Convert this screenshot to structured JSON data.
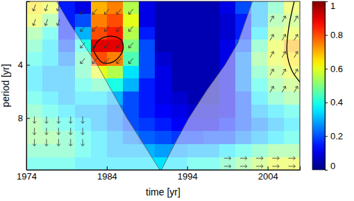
{
  "chart_data": {
    "type": "heatmap",
    "xlabel": "time [yr]",
    "ylabel": "period [yr]",
    "log": "y",
    "xlim": [
      1974,
      2008
    ],
    "ylim": [
      1.75,
      15.7
    ],
    "xticks": [
      1974,
      1984,
      1994,
      2004
    ],
    "yticks": [
      4,
      8
    ],
    "x": [
      1975,
      1977,
      1979,
      1981,
      1983,
      1985,
      1987,
      1989,
      1991,
      1993,
      1995,
      1997,
      1999,
      2001,
      2003,
      2005,
      2007
    ],
    "y": [
      1.9,
      2.25,
      2.65,
      3.1,
      3.7,
      4.4,
      5.2,
      6.2,
      7.3,
      8.7,
      10.3,
      12.2,
      14.5
    ],
    "z": [
      [
        0.65,
        0.6,
        0.15,
        0.1,
        0.7,
        0.75,
        0.55,
        0.1,
        0.05,
        0.05,
        0.05,
        0.05,
        0.1,
        0.2,
        0.3,
        0.45,
        0.6
      ],
      [
        0.6,
        0.5,
        0.15,
        0.2,
        0.75,
        0.8,
        0.6,
        0.1,
        0.05,
        0.05,
        0.05,
        0.05,
        0.08,
        0.15,
        0.3,
        0.5,
        0.55
      ],
      [
        0.5,
        0.4,
        0.15,
        0.3,
        0.8,
        0.85,
        0.55,
        0.15,
        0.05,
        0.05,
        0.05,
        0.05,
        0.08,
        0.15,
        0.35,
        0.55,
        0.6
      ],
      [
        0.45,
        0.35,
        0.2,
        0.4,
        0.9,
        0.9,
        0.5,
        0.2,
        0.05,
        0.05,
        0.05,
        0.05,
        0.1,
        0.2,
        0.45,
        0.6,
        0.7
      ],
      [
        0.4,
        0.35,
        0.25,
        0.45,
        0.8,
        0.75,
        0.45,
        0.2,
        0.08,
        0.05,
        0.05,
        0.05,
        0.1,
        0.25,
        0.5,
        0.6,
        0.65
      ],
      [
        0.35,
        0.3,
        0.3,
        0.45,
        0.6,
        0.55,
        0.35,
        0.2,
        0.1,
        0.05,
        0.05,
        0.05,
        0.1,
        0.25,
        0.45,
        0.55,
        0.6
      ],
      [
        0.35,
        0.3,
        0.3,
        0.4,
        0.45,
        0.4,
        0.3,
        0.15,
        0.1,
        0.05,
        0.05,
        0.05,
        0.1,
        0.25,
        0.4,
        0.5,
        0.55
      ],
      [
        0.4,
        0.35,
        0.3,
        0.35,
        0.35,
        0.3,
        0.2,
        0.15,
        0.1,
        0.08,
        0.05,
        0.05,
        0.1,
        0.2,
        0.35,
        0.45,
        0.5
      ],
      [
        0.45,
        0.4,
        0.35,
        0.3,
        0.3,
        0.25,
        0.2,
        0.15,
        0.12,
        0.1,
        0.08,
        0.08,
        0.1,
        0.2,
        0.3,
        0.35,
        0.4
      ],
      [
        0.5,
        0.45,
        0.4,
        0.35,
        0.3,
        0.25,
        0.2,
        0.18,
        0.15,
        0.12,
        0.1,
        0.1,
        0.15,
        0.2,
        0.25,
        0.3,
        0.35
      ],
      [
        0.5,
        0.5,
        0.45,
        0.4,
        0.35,
        0.3,
        0.25,
        0.22,
        0.2,
        0.18,
        0.18,
        0.2,
        0.2,
        0.25,
        0.3,
        0.35,
        0.4
      ],
      [
        0.45,
        0.45,
        0.45,
        0.4,
        0.35,
        0.3,
        0.3,
        0.3,
        0.28,
        0.28,
        0.3,
        0.3,
        0.35,
        0.4,
        0.45,
        0.5,
        0.5
      ],
      [
        0.4,
        0.4,
        0.4,
        0.35,
        0.35,
        0.35,
        0.35,
        0.35,
        0.35,
        0.35,
        0.4,
        0.4,
        0.45,
        0.5,
        0.55,
        0.6,
        0.6
      ]
    ],
    "colorbar": {
      "lim": [
        0,
        1
      ],
      "ticks": [
        0,
        0.2,
        0.4,
        0.6,
        0.8,
        1
      ]
    },
    "coi": {
      "x": [
        1977.6,
        1979.3,
        1981.2,
        1982.8,
        1984.6,
        1986.5,
        1988.6,
        1990.7,
        1992.4,
        1994.2,
        1996.4,
        1998.7,
        2000.3,
        2002.2
      ],
      "y": [
        1.7,
        2.3,
        3.1,
        4,
        5.6,
        8,
        11.3,
        16,
        11.3,
        8,
        5.6,
        4,
        3,
        1.7
      ]
    },
    "contours": [
      {
        "x": [
          1982.3,
          1983,
          1984.5,
          1985.8,
          1986,
          1985,
          1983.5,
          1982.3
        ],
        "y": [
          3.3,
          2.9,
          2.75,
          2.9,
          3.3,
          3.8,
          3.9,
          3.3
        ]
      },
      {
        "x": [
          2007.3,
          2006.6,
          2006.4,
          2007,
          2008
        ],
        "y": [
          1.75,
          2.5,
          3.4,
          4.3,
          5
        ]
      }
    ],
    "arrows": {
      "x": [
        1975,
        1976.5,
        1978,
        1975,
        1976.5,
        1978,
        1981,
        1982.5,
        1984,
        1985.5,
        1987,
        1981,
        1982.5,
        1984,
        1985.5,
        1987,
        1981,
        1982.5,
        1984,
        1985.5,
        1987,
        1981,
        1982.5,
        1984,
        1985.5,
        1987,
        1975,
        1976.5,
        1978,
        1979.5,
        1981,
        1975,
        1976.5,
        1978,
        1979.5,
        1981,
        1975,
        1976.5,
        1978,
        1979.5,
        1981,
        2004.5,
        2006,
        2007.5,
        2004.5,
        2006,
        2007.5,
        2004.5,
        2006,
        2007.5,
        2004.5,
        2006,
        2007.5,
        2004.5,
        2006,
        2007.5,
        1999,
        2001,
        2003,
        2005,
        2007,
        1999,
        2001,
        2003,
        2005,
        2007
      ],
      "y": [
        1.9,
        1.9,
        1.9,
        2.3,
        2.3,
        2.3,
        2.0,
        2.0,
        2.0,
        2.0,
        2.0,
        2.5,
        2.5,
        2.5,
        2.5,
        2.5,
        3.1,
        3.1,
        3.1,
        3.1,
        3.1,
        3.8,
        3.8,
        3.8,
        3.8,
        3.8,
        8.2,
        8.2,
        8.2,
        8.2,
        8.2,
        9.5,
        9.5,
        9.5,
        9.5,
        9.5,
        11,
        11,
        11,
        11,
        11,
        2.2,
        2.2,
        2.2,
        2.8,
        2.8,
        2.8,
        3.5,
        3.5,
        3.5,
        4.4,
        4.4,
        4.4,
        5.5,
        5.5,
        5.5,
        13.5,
        13.5,
        13.5,
        13.5,
        13.5,
        15,
        15,
        15,
        15,
        15
      ],
      "phase": [
        -110,
        -110,
        -110,
        -110,
        -110,
        -110,
        -130,
        -130,
        -130,
        -130,
        -130,
        -130,
        -130,
        -130,
        -130,
        -130,
        -130,
        -130,
        -130,
        -130,
        -130,
        -130,
        -130,
        -130,
        -130,
        -130,
        -90,
        -90,
        -90,
        -90,
        -90,
        -90,
        -90,
        -90,
        -90,
        -90,
        -90,
        -90,
        -90,
        -90,
        -90,
        60,
        60,
        60,
        60,
        60,
        60,
        60,
        60,
        60,
        60,
        60,
        60,
        60,
        60,
        60,
        0,
        0,
        0,
        0,
        0,
        0,
        0,
        0,
        0,
        0
      ]
    }
  }
}
